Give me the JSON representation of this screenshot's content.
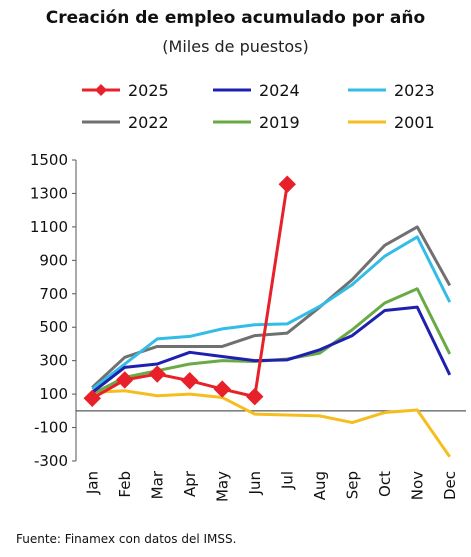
{
  "title": "Creación de empleo acumulado por año",
  "subtitle": "(Miles de puestos)",
  "source": "Fuente:  Finamex con datos del IMSS.",
  "chart_data": {
    "type": "line",
    "title": "Creación de empleo acumulado por año",
    "subtitle": "(Miles de puestos)",
    "xlabel": "",
    "ylabel": "",
    "categories": [
      "Jan",
      "Feb",
      "Mar",
      "Apr",
      "May",
      "Jun",
      "Jul",
      "Aug",
      "Sep",
      "Oct",
      "Nov",
      "Dec"
    ],
    "ylim": [
      -300,
      1500
    ],
    "yticks": [
      "1500",
      "1300",
      "1100",
      "900",
      "700",
      "500",
      "300",
      "100",
      "-100",
      "-300"
    ],
    "grid": false,
    "legend_position": "top",
    "series": [
      {
        "name": "2025",
        "color": "#e8202a",
        "marker": "diamond",
        "values": [
          75,
          185,
          220,
          180,
          130,
          85,
          1355,
          null,
          null,
          null,
          null,
          null
        ]
      },
      {
        "name": "2024",
        "color": "#1f1fb0",
        "marker": "none",
        "values": [
          110,
          260,
          280,
          350,
          325,
          300,
          305,
          365,
          450,
          600,
          620,
          215
        ]
      },
      {
        "name": "2023",
        "color": "#33bde6",
        "marker": "none",
        "values": [
          130,
          280,
          430,
          445,
          490,
          515,
          520,
          625,
          755,
          925,
          1040,
          650
        ]
      },
      {
        "name": "2022",
        "color": "#707070",
        "marker": "none",
        "values": [
          140,
          320,
          385,
          385,
          385,
          450,
          465,
          620,
          785,
          990,
          1100,
          750
        ]
      },
      {
        "name": "2019",
        "color": "#6aaa45",
        "marker": "none",
        "values": [
          100,
          200,
          240,
          280,
          300,
          295,
          310,
          345,
          485,
          645,
          730,
          340
        ]
      },
      {
        "name": "2001",
        "color": "#f5be1e",
        "marker": "none",
        "values": [
          110,
          120,
          90,
          100,
          80,
          -20,
          -25,
          -30,
          -70,
          -10,
          5,
          -275
        ]
      }
    ],
    "legend_order": [
      "2025",
      "2024",
      "2023",
      "2022",
      "2019",
      "2001"
    ]
  }
}
